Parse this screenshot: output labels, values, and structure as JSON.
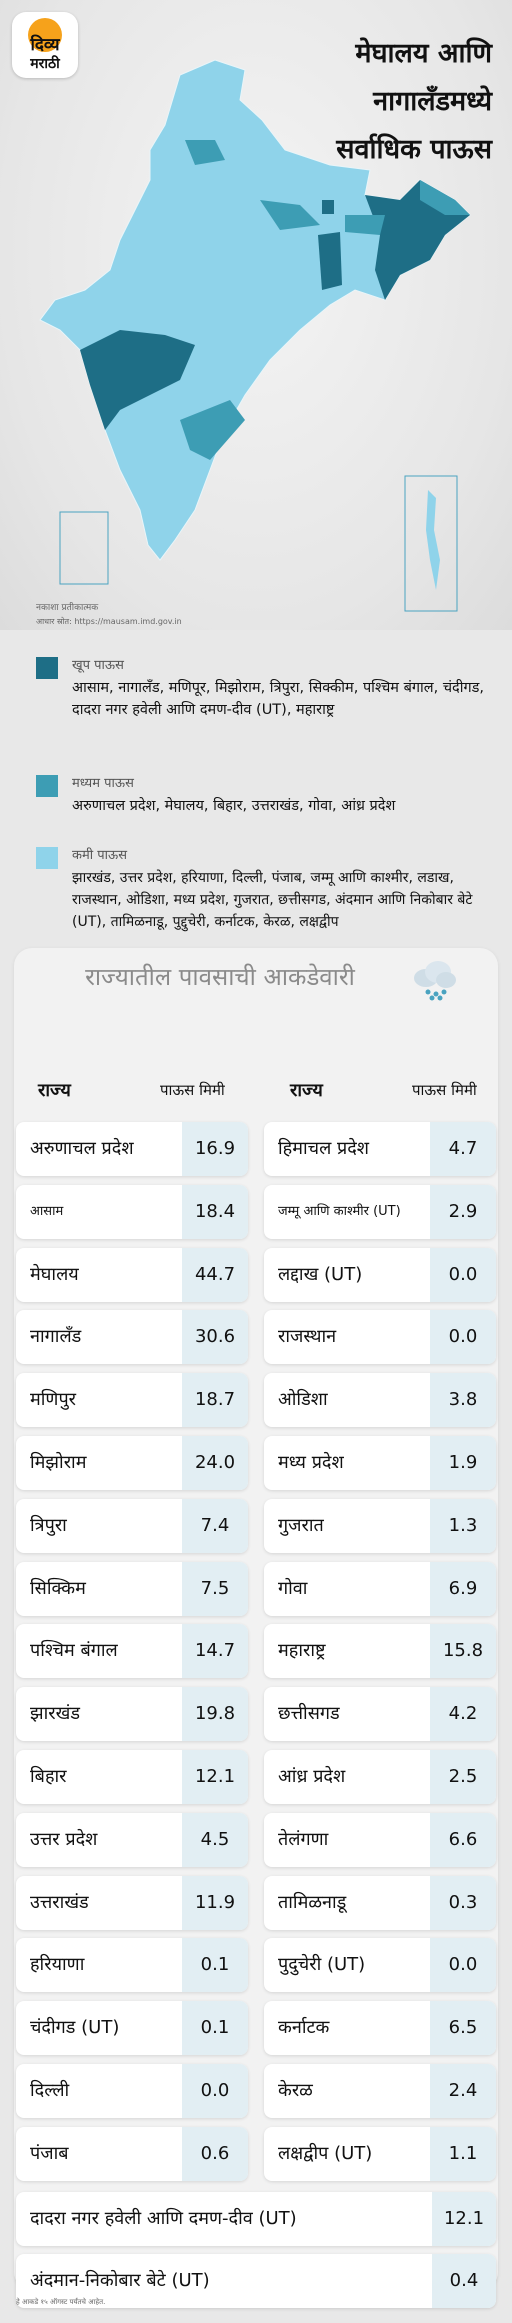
{
  "brand": {
    "line1": "दिव्य",
    "line2": "मराठी"
  },
  "headline": [
    "मेघालय आणि",
    "नागालँडमध्ये",
    "सर्वाधिक पाऊस"
  ],
  "map_note": {
    "disclaimer": "नकाशा प्रतीकात्मक",
    "source": "आधार स्रोत: https://mausam.imd.gov.in"
  },
  "colors": {
    "heavy": "#1e6e86",
    "medium": "#3d9db4",
    "low": "#8fd3ea"
  },
  "legend": [
    {
      "level": "खूप पाऊस",
      "states": "आसाम, नागालँड, मणिपूर, मिझोराम, त्रिपुरा, सिक्कीम, पश्चिम बंगाल, चंदीगड, दादरा नगर हवेली आणि दमण-दीव (UT), महाराष्ट्र"
    },
    {
      "level": "मध्यम पाऊस",
      "states": "अरुणाचल प्रदेश, मेघालय, बिहार, उत्तराखंड, गोवा, आंध्र प्रदेश"
    },
    {
      "level": "कमी पाऊस",
      "states": "झारखंड, उत्तर प्रदेश, हरियाणा, दिल्ली, पंजाब, जम्मू आणि काश्मीर, लडाख, राजस्थान, ओडिशा, मध्य प्रदेश, गुजरात, छत्तीसगड, अंदमान आणि निकोबार बेटे (UT), तामिळनाडू, पुद्दुचेरी, कर्नाटक, केरळ, लक्षद्वीप"
    }
  ],
  "table": {
    "title": "राज्यातील पावसाची आकडेवारी",
    "col_state": "राज्य",
    "col_rain": "पाऊस मिमी",
    "left": [
      {
        "state": "अरुणाचल प्रदेश",
        "mm": "16.9"
      },
      {
        "state": "आसाम",
        "mm": "18.4"
      },
      {
        "state": "मेघालय",
        "mm": "44.7"
      },
      {
        "state": "नागालँड",
        "mm": "30.6"
      },
      {
        "state": "मणिपुर",
        "mm": "18.7"
      },
      {
        "state": "मिझोराम",
        "mm": "24.0"
      },
      {
        "state": "त्रिपुरा",
        "mm": "7.4"
      },
      {
        "state": "सिक्किम",
        "mm": "7.5"
      },
      {
        "state": "पश्चिम बंगाल",
        "mm": "14.7"
      },
      {
        "state": "झारखंड",
        "mm": "19.8"
      },
      {
        "state": "बिहार",
        "mm": "12.1"
      },
      {
        "state": "उत्तर प्रदेश",
        "mm": "4.5"
      },
      {
        "state": "उत्तराखंड",
        "mm": "11.9"
      },
      {
        "state": "हरियाणा",
        "mm": "0.1"
      },
      {
        "state": "चंदीगड (UT)",
        "mm": "0.1"
      },
      {
        "state": "दिल्ली",
        "mm": "0.0"
      },
      {
        "state": "पंजाब",
        "mm": "0.6"
      }
    ],
    "right": [
      {
        "state": "हिमाचल प्रदेश",
        "mm": "4.7"
      },
      {
        "state": "जम्मू आणि काश्मीर (UT)",
        "mm": "2.9"
      },
      {
        "state": "लद्दाख (UT)",
        "mm": "0.0"
      },
      {
        "state": "राजस्थान",
        "mm": "0.0"
      },
      {
        "state": "ओडिशा",
        "mm": "3.8"
      },
      {
        "state": "मध्य प्रदेश",
        "mm": "1.9"
      },
      {
        "state": "गुजरात",
        "mm": "1.3"
      },
      {
        "state": "गोवा",
        "mm": "6.9"
      },
      {
        "state": "महाराष्ट्र",
        "mm": "15.8"
      },
      {
        "state": "छत्तीसगड",
        "mm": "4.2"
      },
      {
        "state": "आंध्र प्रदेश",
        "mm": "2.5"
      },
      {
        "state": "तेलंगणा",
        "mm": "6.6"
      },
      {
        "state": "तामिळनाडू",
        "mm": "0.3"
      },
      {
        "state": "पुदुचेरी (UT)",
        "mm": "0.0"
      },
      {
        "state": "कर्नाटक",
        "mm": "6.5"
      },
      {
        "state": "केरळ",
        "mm": "2.4"
      },
      {
        "state": "लक्षद्वीप (UT)",
        "mm": "1.1"
      }
    ],
    "wide": [
      {
        "state": "दादरा नगर हवेली आणि दमण-दीव (UT)",
        "mm": "12.1"
      },
      {
        "state": "अंदमान-निकोबार बेटे (UT)",
        "mm": "0.4"
      }
    ]
  },
  "footer": "हे आकडे १५ ऑगस्ट पर्यंतचे आहेत."
}
